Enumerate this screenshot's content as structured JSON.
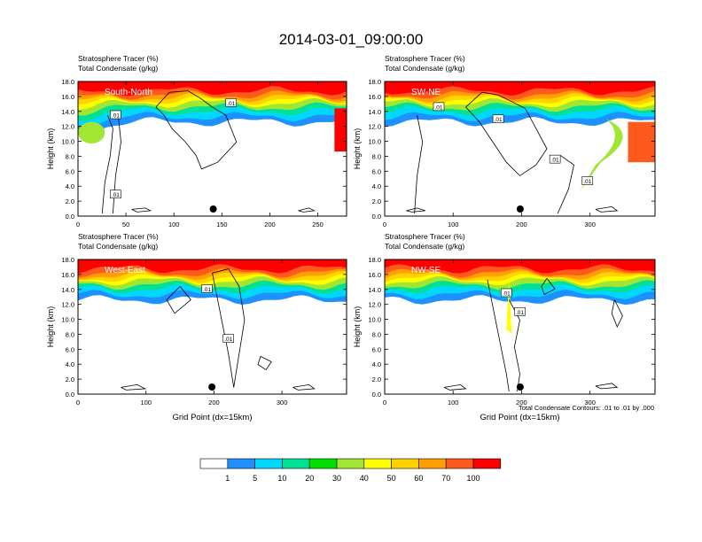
{
  "title": "2014-03-01_09:00:00",
  "panel_header": {
    "line1_name": "Stratosphere Tracer",
    "line1_unit": "(%)",
    "line2_name": "Total Condensate",
    "line2_unit": "(g/kg)"
  },
  "contour_note": "Total Condensate Contours: .01 to .01 by .000",
  "contour_label": ".01",
  "colorbar": {
    "labels": [
      "1",
      "5",
      "10",
      "20",
      "30",
      "40",
      "50",
      "60",
      "70",
      "100"
    ],
    "colors": [
      "#ffffff",
      "#1e90ff",
      "#00d7ff",
      "#00e196",
      "#00e000",
      "#a0e632",
      "#ffff00",
      "#ffd200",
      "#ffa000",
      "#ff5a1e",
      "#ff0000"
    ]
  },
  "chart_data": [
    {
      "type": "heatmap",
      "label": "South-North",
      "xlabel": "",
      "ylabel": "Height (km)",
      "xlim": [
        0,
        280
      ],
      "ylim": [
        0,
        18
      ],
      "x_ticks": [
        0,
        50,
        100,
        150,
        200,
        250
      ],
      "y_ticks": [
        "0.0",
        "2.0",
        "4.0",
        "6.0",
        "8.0",
        "10.0",
        "12.0",
        "14.0",
        "16.0",
        "18.0"
      ],
      "marker_x": 141
    },
    {
      "type": "heatmap",
      "label": "SW-NE",
      "xlabel": "",
      "ylabel": "Height (km)",
      "xlim": [
        0,
        395
      ],
      "ylim": [
        0,
        18
      ],
      "x_ticks": [
        0,
        100,
        200,
        300
      ],
      "y_ticks": [
        "0.0",
        "2.0",
        "4.0",
        "6.0",
        "8.0",
        "10.0",
        "12.0",
        "14.0",
        "16.0",
        "18.0"
      ],
      "marker_x": 198
    },
    {
      "type": "heatmap",
      "label": "West-East",
      "xlabel": "Grid Point (dx=15km)",
      "ylabel": "Height (km)",
      "xlim": [
        0,
        395
      ],
      "ylim": [
        0,
        18
      ],
      "x_ticks": [
        0,
        100,
        200,
        300
      ],
      "y_ticks": [
        "0.0",
        "2.0",
        "4.0",
        "6.0",
        "8.0",
        "10.0",
        "12.0",
        "14.0",
        "16.0",
        "18.0"
      ],
      "marker_x": 197
    },
    {
      "type": "heatmap",
      "label": "NW-SE",
      "xlabel": "Grid Point (dx=15km)",
      "ylabel": "Height (km)",
      "xlim": [
        0,
        395
      ],
      "ylim": [
        0,
        18
      ],
      "x_ticks": [
        0,
        100,
        200,
        300
      ],
      "y_ticks": [
        "0.0",
        "2.0",
        "4.0",
        "6.0",
        "8.0",
        "10.0",
        "12.0",
        "14.0",
        "16.0",
        "18.0"
      ],
      "marker_x": 198
    }
  ]
}
